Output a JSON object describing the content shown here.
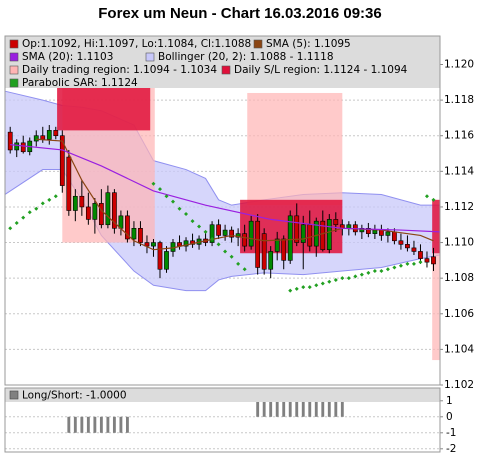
{
  "chart_data": [
    {
      "type": "candlestick",
      "title": "Forex um Neun - Chart 16.03.2016 09:36",
      "xlim": [
        -0.8,
        66
      ],
      "ylim": [
        1.102,
        1.1216
      ],
      "yticks": [
        1.102,
        1.104,
        1.106,
        1.108,
        {
          "value": 1.11,
          "label": "1.110"
        },
        1.112,
        1.114,
        1.116,
        1.118,
        {
          "value": 1.12,
          "label": "1.120"
        }
      ],
      "grid": true,
      "candles": {
        "name": "Op:1.1092, Hi:1.1097, Lo:1.1084, Cl:1.1088",
        "color": "#cc0000",
        "up_color": "#008800",
        "open": [
          1.1162,
          1.1152,
          1.1156,
          1.1151,
          1.1157,
          1.116,
          1.1158,
          1.1163,
          1.116,
          1.1148,
          1.1118,
          1.1126,
          1.112,
          1.1113,
          1.1122,
          1.111,
          1.1128,
          1.1108,
          1.1115,
          1.1102,
          1.1108,
          1.11,
          1.1098,
          1.11,
          1.1085,
          1.1095,
          1.11,
          1.1098,
          1.1101,
          1.1099,
          1.1102,
          1.11,
          1.111,
          1.1104,
          1.1107,
          1.1103,
          1.1105,
          1.1098,
          1.1112,
          1.1105,
          1.1085,
          1.1095,
          1.1102,
          1.109,
          1.1115,
          1.11,
          1.111,
          1.1098,
          1.1112,
          1.1096,
          1.1113,
          1.111,
          1.1108,
          1.111,
          1.1106,
          1.1108,
          1.1105,
          1.1107,
          1.1104,
          1.1106,
          1.1101,
          1.1099,
          1.1097,
          1.1095,
          1.1091,
          1.1092
        ],
        "high": [
          1.1165,
          1.1158,
          1.116,
          1.1159,
          1.1163,
          1.1165,
          1.1166,
          1.1165,
          1.1163,
          1.1152,
          1.113,
          1.1135,
          1.1128,
          1.1125,
          1.113,
          1.1132,
          1.113,
          1.1118,
          1.1118,
          1.1112,
          1.1112,
          1.1104,
          1.1102,
          1.1101,
          1.1098,
          1.1102,
          1.1104,
          1.1103,
          1.1105,
          1.1104,
          1.1106,
          1.1112,
          1.1113,
          1.111,
          1.1109,
          1.1108,
          1.111,
          1.1115,
          1.1116,
          1.1108,
          1.1098,
          1.1106,
          1.1104,
          1.1118,
          1.1122,
          1.1115,
          1.1118,
          1.1114,
          1.1118,
          1.1116,
          1.1117,
          1.1113,
          1.1112,
          1.1112,
          1.111,
          1.1111,
          1.111,
          1.111,
          1.1108,
          1.1108,
          1.1105,
          1.1104,
          1.1101,
          1.1099,
          1.1095,
          1.1097
        ],
        "low": [
          1.115,
          1.1148,
          1.115,
          1.1149,
          1.1154,
          1.1156,
          1.1155,
          1.1158,
          1.1128,
          1.1115,
          1.1112,
          1.1115,
          1.111,
          1.1105,
          1.1108,
          1.1108,
          1.1105,
          1.1104,
          1.11,
          1.1098,
          1.1098,
          1.1094,
          1.1092,
          1.108,
          1.1083,
          1.1092,
          1.1096,
          1.1095,
          1.1097,
          1.1096,
          1.1098,
          1.1098,
          1.1102,
          1.1101,
          1.11,
          1.1098,
          1.1095,
          1.1096,
          1.1082,
          1.1082,
          1.108,
          1.109,
          1.1085,
          1.1088,
          1.1098,
          1.1085,
          1.1095,
          1.1092,
          1.1095,
          1.1094,
          1.1106,
          1.1104,
          1.1104,
          1.1104,
          1.1102,
          1.1103,
          1.1102,
          1.1101,
          1.11,
          1.1099,
          1.1096,
          1.1095,
          1.1093,
          1.1088,
          1.1086,
          1.1084
        ],
        "close": [
          1.1152,
          1.1156,
          1.1151,
          1.1157,
          1.116,
          1.1158,
          1.1163,
          1.116,
          1.1132,
          1.1118,
          1.1126,
          1.112,
          1.1113,
          1.1122,
          1.111,
          1.1128,
          1.1108,
          1.1115,
          1.1102,
          1.1108,
          1.11,
          1.1098,
          1.11,
          1.1085,
          1.1095,
          1.11,
          1.1098,
          1.1101,
          1.1099,
          1.1102,
          1.11,
          1.111,
          1.1104,
          1.1107,
          1.1103,
          1.1105,
          1.1098,
          1.1112,
          1.1086,
          1.1085,
          1.1095,
          1.1102,
          1.109,
          1.1115,
          1.11,
          1.111,
          1.1098,
          1.1112,
          1.1096,
          1.1113,
          1.111,
          1.1108,
          1.111,
          1.1106,
          1.1108,
          1.1105,
          1.1107,
          1.1104,
          1.1106,
          1.1101,
          1.1099,
          1.1097,
          1.1095,
          1.1091,
          1.1089,
          1.1088
        ]
      },
      "sma5": {
        "name": "SMA (5): 1.1095",
        "color": "#8b4513",
        "x": [
          4,
          8,
          11,
          14,
          19,
          22,
          25,
          30,
          34,
          39,
          45,
          51,
          57,
          63,
          65
        ],
        "values": [
          1.1158,
          1.1157,
          1.1135,
          1.1118,
          1.1101,
          1.1096,
          1.1097,
          1.1101,
          1.1104,
          1.1101,
          1.1102,
          1.1108,
          1.1107,
          1.1104,
          1.1101
        ]
      },
      "sma20": {
        "name": "SMA (20): 1.1103",
        "color": "#9a20e0",
        "x": [
          0,
          8,
          14,
          22,
          30,
          40,
          51,
          60,
          66
        ],
        "values": [
          1.1155,
          1.1152,
          1.1143,
          1.1129,
          1.1121,
          1.1113,
          1.1108,
          1.1107,
          1.1106
        ]
      },
      "bollinger": {
        "name": "Bollinger (20, 2): 1.1088 - 1.1118",
        "color": "#9090f0",
        "fill": "#c8c8fa",
        "x": [
          -0.8,
          5,
          8,
          11,
          14,
          19,
          22,
          27,
          30,
          32,
          34,
          39,
          45,
          51,
          57,
          63,
          66
        ],
        "upper": [
          1.1185,
          1.118,
          1.1177,
          1.1176,
          1.1174,
          1.1166,
          1.1146,
          1.1141,
          1.1136,
          1.1124,
          1.1121,
          1.1124,
          1.1127,
          1.1128,
          1.1127,
          1.1121,
          1.1121
        ],
        "lower": [
          1.1127,
          1.1141,
          1.1141,
          1.1124,
          1.1104,
          1.1084,
          1.1076,
          1.1073,
          1.1073,
          1.1079,
          1.1081,
          1.1083,
          1.1082,
          1.1084,
          1.1086,
          1.1091,
          1.1093
        ]
      },
      "trading_region": {
        "name": "Daily trading region: 1.1094 - 1.1034",
        "color": "#ffb4b4",
        "regions": [
          {
            "x": [
              8,
              22.2
            ],
            "y": [
              1.11,
              1.119
            ]
          },
          {
            "x": [
              36.4,
              51
            ],
            "y": [
              1.1121,
              1.1184
            ]
          },
          {
            "x": [
              64.8,
              66
            ],
            "y": [
              1.1034,
              1.1094
            ]
          }
        ]
      },
      "sl_region": {
        "name": "Daily S/L region: 1.1124 - 1.1094",
        "color": "#e0103a",
        "regions": [
          {
            "x": [
              7.2,
              21.5
            ],
            "y": [
              1.1163,
              1.119
            ]
          },
          {
            "x": [
              35.3,
              51
            ],
            "y": [
              1.1094,
              1.1124
            ]
          },
          {
            "x": [
              64.8,
              66
            ],
            "y": [
              1.1094,
              1.1124
            ]
          }
        ]
      },
      "sar": {
        "name": "Parabolic SAR: 1.1124",
        "color": "#22a022",
        "x": [
          0,
          1,
          2,
          3,
          4,
          5,
          6,
          7,
          22,
          23,
          24,
          25,
          26,
          27,
          28,
          29,
          30,
          31,
          32,
          33,
          34,
          35,
          36,
          43,
          44,
          45,
          46,
          47,
          48,
          49,
          50,
          51,
          52,
          53,
          54,
          55,
          56,
          57,
          58,
          59,
          60,
          61,
          62,
          63,
          64,
          65
        ],
        "values": [
          1.1108,
          1.1111,
          1.1114,
          1.1117,
          1.1119,
          1.1122,
          1.1124,
          1.1126,
          1.1133,
          1.113,
          1.1126,
          1.1123,
          1.1119,
          1.1116,
          1.1112,
          1.1109,
          1.1106,
          1.1102,
          1.1099,
          1.1095,
          1.1092,
          1.1088,
          1.1085,
          1.1073,
          1.1074,
          1.1075,
          1.1075,
          1.1076,
          1.1077,
          1.1078,
          1.1079,
          1.108,
          1.108,
          1.1081,
          1.1082,
          1.1083,
          1.1084,
          1.1084,
          1.1085,
          1.1086,
          1.1087,
          1.1088,
          1.1088,
          1.1089,
          1.1126,
          1.1124
        ]
      }
    },
    {
      "type": "bar",
      "xlim": [
        -0.8,
        66
      ],
      "ylim": [
        -2.2,
        1.8
      ],
      "yticks": [
        1,
        0,
        -1,
        -2
      ],
      "series": [
        {
          "name": "Long/Short: -1.0000",
          "color": "#808080",
          "x": [
            9,
            10,
            11,
            12,
            13,
            14,
            15,
            16,
            17,
            18,
            38,
            39,
            40,
            41,
            42,
            43,
            44,
            45,
            46,
            47,
            48,
            49,
            50,
            51
          ],
          "values": [
            -1,
            -1,
            -1,
            -1,
            -1,
            -1,
            -1,
            -1,
            -1,
            -1,
            1,
            1,
            1,
            1,
            1,
            1,
            1,
            1,
            1,
            1,
            1,
            1,
            1,
            1
          ]
        }
      ]
    }
  ]
}
